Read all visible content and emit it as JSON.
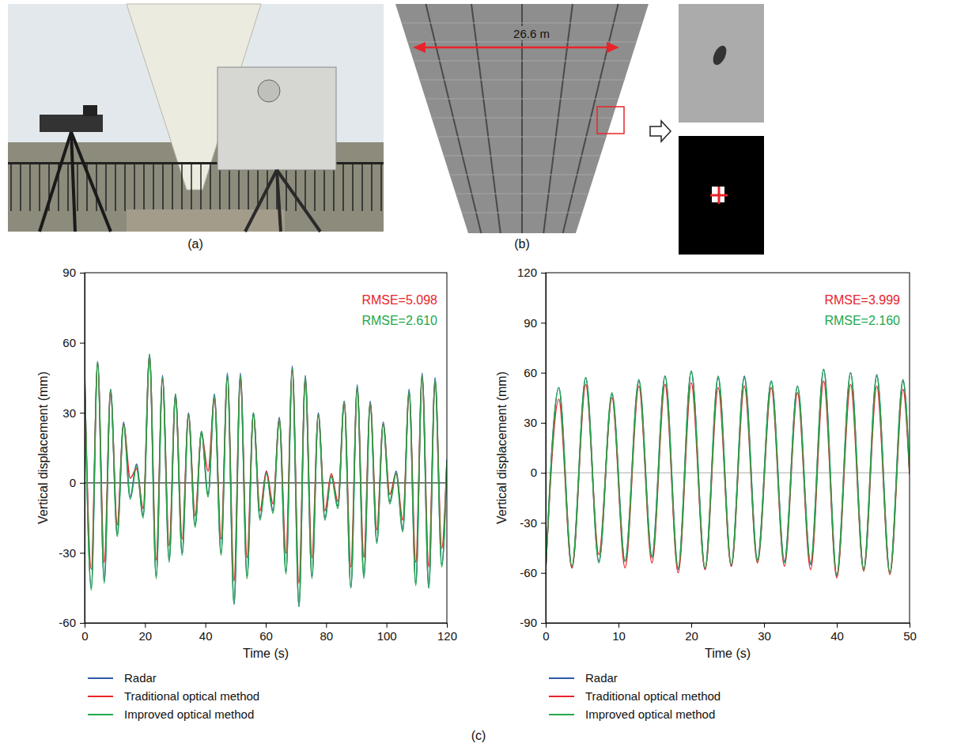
{
  "figure": {
    "panel_labels": {
      "a": "(a)",
      "b": "(b)",
      "c": "(c)"
    },
    "scale_label": "26.6 m"
  },
  "chart_data": [
    {
      "type": "line",
      "x_label": "Time (s)",
      "y_label": "Vertical displacement (mm)",
      "xlim": [
        0,
        120
      ],
      "xticks": [
        0,
        20,
        40,
        60,
        80,
        100,
        120
      ],
      "ylim": [
        -60,
        90
      ],
      "yticks": [
        -60,
        -30,
        0,
        30,
        60,
        90
      ],
      "legend": "bottom",
      "annotations": [
        {
          "text": "RMSE=5.098",
          "color": "#e8242b"
        },
        {
          "text": "RMSE=2.610",
          "color": "#22a84a"
        }
      ],
      "x": [
        0,
        2.2,
        4.3,
        6.5,
        8.6,
        10.8,
        12.9,
        15.1,
        17.2,
        19.4,
        21.5,
        23.7,
        25.8,
        28.0,
        30.1,
        32.3,
        34.4,
        36.6,
        38.7,
        40.9,
        43.0,
        45.2,
        47.3,
        49.5,
        51.6,
        53.8,
        55.9,
        58.1,
        60.2,
        62.4,
        64.5,
        66.7,
        68.8,
        71.0,
        73.1,
        75.3,
        77.4,
        79.6,
        81.7,
        83.9,
        86.0,
        88.2,
        90.3,
        92.5,
        94.6,
        96.8,
        98.9,
        101.1,
        103.2,
        105.4,
        107.5,
        109.7,
        111.8,
        114.0,
        116.1,
        118.3,
        120
      ],
      "series": [
        {
          "name": "Radar",
          "color": "#2e5aa8",
          "values": [
            48,
            -45,
            52,
            -42,
            40,
            -22,
            26,
            -6,
            8,
            -14,
            55,
            -40,
            46,
            -33,
            38,
            -30,
            30,
            -18,
            22,
            -5,
            38,
            -30,
            47,
            -52,
            47,
            -40,
            30,
            -15,
            5,
            -12,
            28,
            -38,
            50,
            -53,
            46,
            -40,
            30,
            -15,
            3,
            -10,
            35,
            -45,
            42,
            -40,
            35,
            -25,
            26,
            -8,
            5,
            -20,
            40,
            -43,
            47,
            -45,
            45,
            -35,
            10
          ]
        },
        {
          "name": "Traditional optical method",
          "color": "#e8242b",
          "values": [
            46,
            -37,
            51,
            -34,
            39,
            -18,
            25,
            2,
            6,
            -11,
            54,
            -33,
            44,
            -27,
            37,
            -24,
            29,
            -14,
            21,
            5,
            36,
            -24,
            45,
            -42,
            45,
            -32,
            29,
            -12,
            5,
            -9,
            27,
            -30,
            48,
            -43,
            44,
            -32,
            29,
            -12,
            4,
            -8,
            34,
            -36,
            40,
            -32,
            34,
            -20,
            25,
            -5,
            4,
            -16,
            38,
            -34,
            45,
            -36,
            43,
            -28,
            9
          ]
        },
        {
          "name": "Improved optical method",
          "color": "#22a84a",
          "values": [
            47,
            -46,
            52,
            -43,
            40,
            -23,
            25,
            -7,
            7,
            -15,
            55,
            -41,
            45,
            -34,
            38,
            -31,
            29,
            -19,
            22,
            -6,
            37,
            -31,
            46,
            -52,
            46,
            -41,
            30,
            -16,
            4,
            -13,
            27,
            -39,
            49,
            -53,
            45,
            -41,
            29,
            -16,
            3,
            -11,
            35,
            -45,
            41,
            -41,
            34,
            -26,
            25,
            -9,
            4,
            -21,
            39,
            -44,
            46,
            -45,
            44,
            -36,
            9
          ]
        }
      ]
    },
    {
      "type": "line",
      "x_label": "Time (s)",
      "y_label": "Vertical displacement (mm)",
      "xlim": [
        0,
        50
      ],
      "xticks": [
        0,
        10,
        20,
        30,
        40,
        50
      ],
      "ylim": [
        -90,
        120
      ],
      "yticks": [
        -90,
        -60,
        -30,
        0,
        30,
        60,
        90,
        120
      ],
      "legend": "bottom",
      "annotations": [
        {
          "text": "RMSE=3.999",
          "color": "#e8242b"
        },
        {
          "text": "RMSE=2.160",
          "color": "#22a84a"
        }
      ],
      "x": [
        0,
        1.8,
        3.6,
        5.5,
        7.3,
        9.1,
        10.9,
        12.8,
        14.6,
        16.4,
        18.2,
        20.0,
        21.9,
        23.7,
        25.5,
        27.3,
        29.1,
        31.0,
        32.8,
        34.6,
        36.4,
        38.2,
        40.0,
        41.9,
        43.7,
        45.5,
        47.3,
        49.1,
        50
      ],
      "series": [
        {
          "name": "Radar",
          "color": "#2e5aa8",
          "values": [
            -58,
            51,
            -57,
            57,
            -53,
            47,
            -53,
            55,
            -50,
            58,
            -58,
            61,
            -58,
            57,
            -56,
            58,
            -52,
            55,
            -53,
            52,
            -55,
            62,
            -62,
            60,
            -58,
            58,
            -60,
            55,
            0
          ]
        },
        {
          "name": "Traditional optical method",
          "color": "#e8242b",
          "values": [
            -58,
            44,
            -57,
            53,
            -49,
            45,
            -57,
            52,
            -54,
            53,
            -60,
            54,
            -58,
            51,
            -56,
            52,
            -54,
            51,
            -56,
            48,
            -58,
            55,
            -63,
            53,
            -59,
            52,
            -61,
            50,
            -1
          ]
        },
        {
          "name": "Improved optical method",
          "color": "#22a84a",
          "values": [
            -58,
            51,
            -56,
            57,
            -54,
            48,
            -53,
            56,
            -51,
            58,
            -57,
            61,
            -57,
            58,
            -55,
            57,
            -53,
            55,
            -54,
            52,
            -54,
            62,
            -61,
            60,
            -58,
            59,
            -60,
            56,
            1
          ]
        }
      ]
    }
  ]
}
